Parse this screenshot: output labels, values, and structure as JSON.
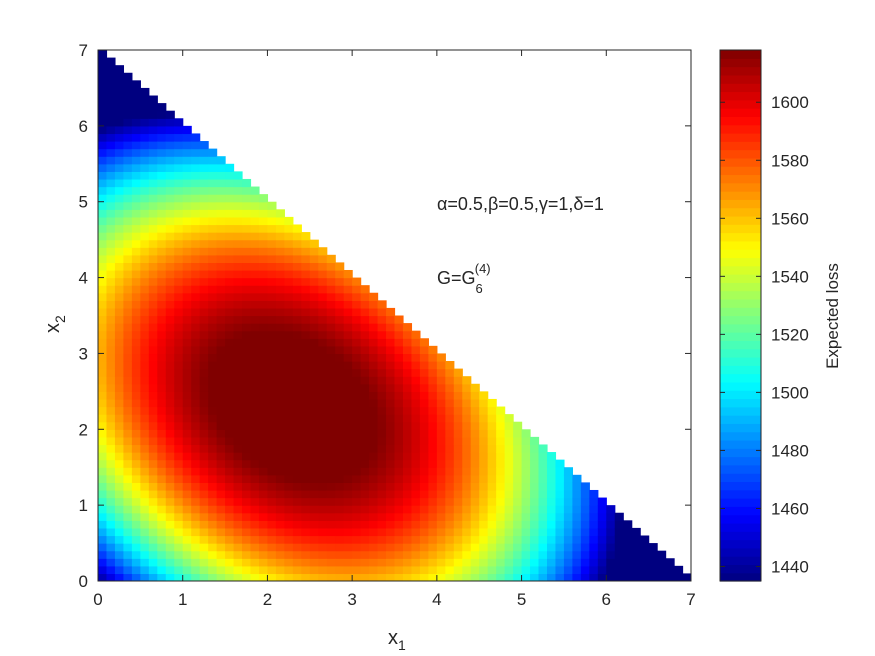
{
  "chart_data": {
    "type": "heatmap",
    "xlabel": "x",
    "xlabel_sub": "1",
    "ylabel": "x",
    "ylabel_sub": "2",
    "xlim": [
      0,
      7
    ],
    "ylim": [
      0,
      7
    ],
    "x_ticks": [
      0,
      1,
      2,
      3,
      4,
      5,
      6,
      7
    ],
    "y_ticks": [
      0,
      1,
      2,
      3,
      4,
      5,
      6,
      7
    ],
    "domain": "x1 + x2 <= 7, x1 >= 0, x2 >= 0",
    "grid": 70,
    "colormap": "jet",
    "colorbar": {
      "label": "Expected loss",
      "range": [
        1435,
        1618
      ],
      "ticks": [
        1440,
        1460,
        1480,
        1500,
        1520,
        1540,
        1560,
        1580,
        1600
      ]
    },
    "surface_model": {
      "form": "quadratic",
      "max_value": 1618,
      "max_at": [
        2.3,
        2.3
      ],
      "corner_values": [
        {
          "x1": 0,
          "x2": 0,
          "value": 1437
        },
        {
          "x1": 0,
          "x2": 6.9,
          "value": 1437
        },
        {
          "x1": 6.9,
          "x2": 0,
          "value": 1437
        },
        {
          "x1": 0,
          "x2": 3.5,
          "value": 1558
        },
        {
          "x1": 3.5,
          "x2": 0,
          "value": 1558
        },
        {
          "x1": 3.5,
          "x2": 3.5,
          "value": 1578
        }
      ]
    },
    "annotations": [
      {
        "id": "params",
        "text": "α=0.5,β=0.5,γ=1,δ=1",
        "x1": 3.95,
        "x2": 5.0
      },
      {
        "id": "g",
        "text": "G=G",
        "sub": "6",
        "sup": "(4)",
        "x1": 3.95,
        "x2": 4.0
      }
    ]
  }
}
